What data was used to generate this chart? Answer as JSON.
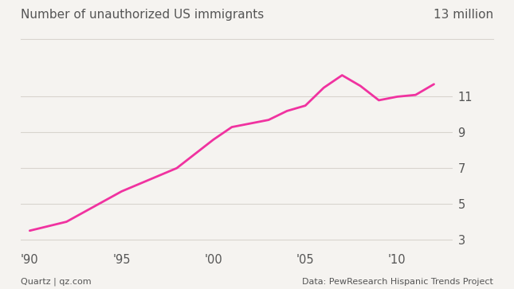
{
  "title_left": "Number of unauthorized US immigrants",
  "title_right": "13 million",
  "xlabel_ticks": [
    "'90",
    "'95",
    "'00",
    "'05",
    "'10"
  ],
  "xlabel_tick_years": [
    1990,
    1995,
    2000,
    2005,
    2010
  ],
  "yticks": [
    3,
    5,
    7,
    9,
    11
  ],
  "ylim": [
    2.5,
    13.5
  ],
  "xlim": [
    1989.5,
    2013.0
  ],
  "years": [
    1990,
    1992,
    1995,
    1998,
    2000,
    2001,
    2002,
    2003,
    2004,
    2005,
    2006,
    2007,
    2008,
    2009,
    2010,
    2011,
    2012
  ],
  "values": [
    3.5,
    4.0,
    5.7,
    7.0,
    8.6,
    9.3,
    9.5,
    9.7,
    10.2,
    10.5,
    11.5,
    12.2,
    11.6,
    10.8,
    11.0,
    11.1,
    11.7
  ],
  "line_color": "#f032a0",
  "bg_color": "#f5f3f0",
  "grid_color": "#d8d4ce",
  "text_color": "#555555",
  "footer_left": "Quartz | qz.com",
  "footer_right": "Data: PewResearch Hispanic Trends Project",
  "line_width": 2.0
}
